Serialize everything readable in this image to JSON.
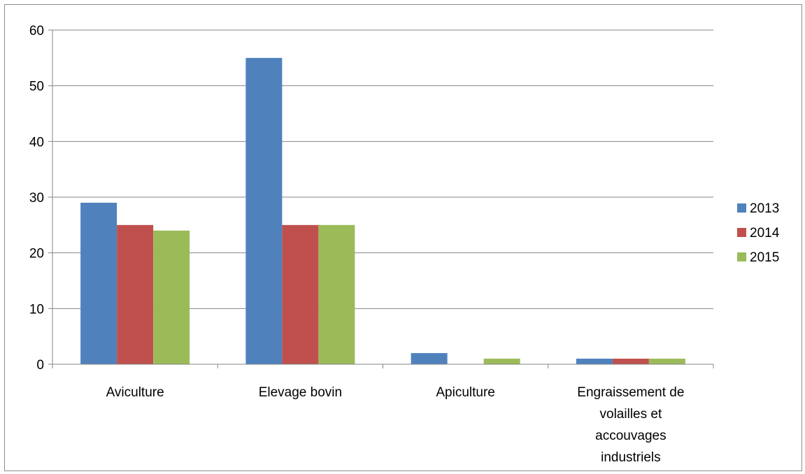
{
  "chart_data": {
    "type": "bar",
    "title": "",
    "xlabel": "",
    "ylabel": "",
    "ylim": [
      0,
      60
    ],
    "yticks": [
      0,
      10,
      20,
      30,
      40,
      50,
      60
    ],
    "grid": "horizontal",
    "legend_position": "right",
    "categories": [
      [
        "Aviculture"
      ],
      [
        "Elevage bovin"
      ],
      [
        "Apiculture"
      ],
      [
        "Engraissement de",
        "volailles et",
        "accouvages",
        "industriels"
      ]
    ],
    "series": [
      {
        "name": "2013",
        "color": "#4f81bd",
        "values": [
          29,
          55,
          2,
          1
        ]
      },
      {
        "name": "2014",
        "color": "#c0504d",
        "values": [
          25,
          25,
          0,
          1
        ]
      },
      {
        "name": "2015",
        "color": "#9bbb59",
        "values": [
          24,
          25,
          1,
          1
        ]
      }
    ]
  }
}
